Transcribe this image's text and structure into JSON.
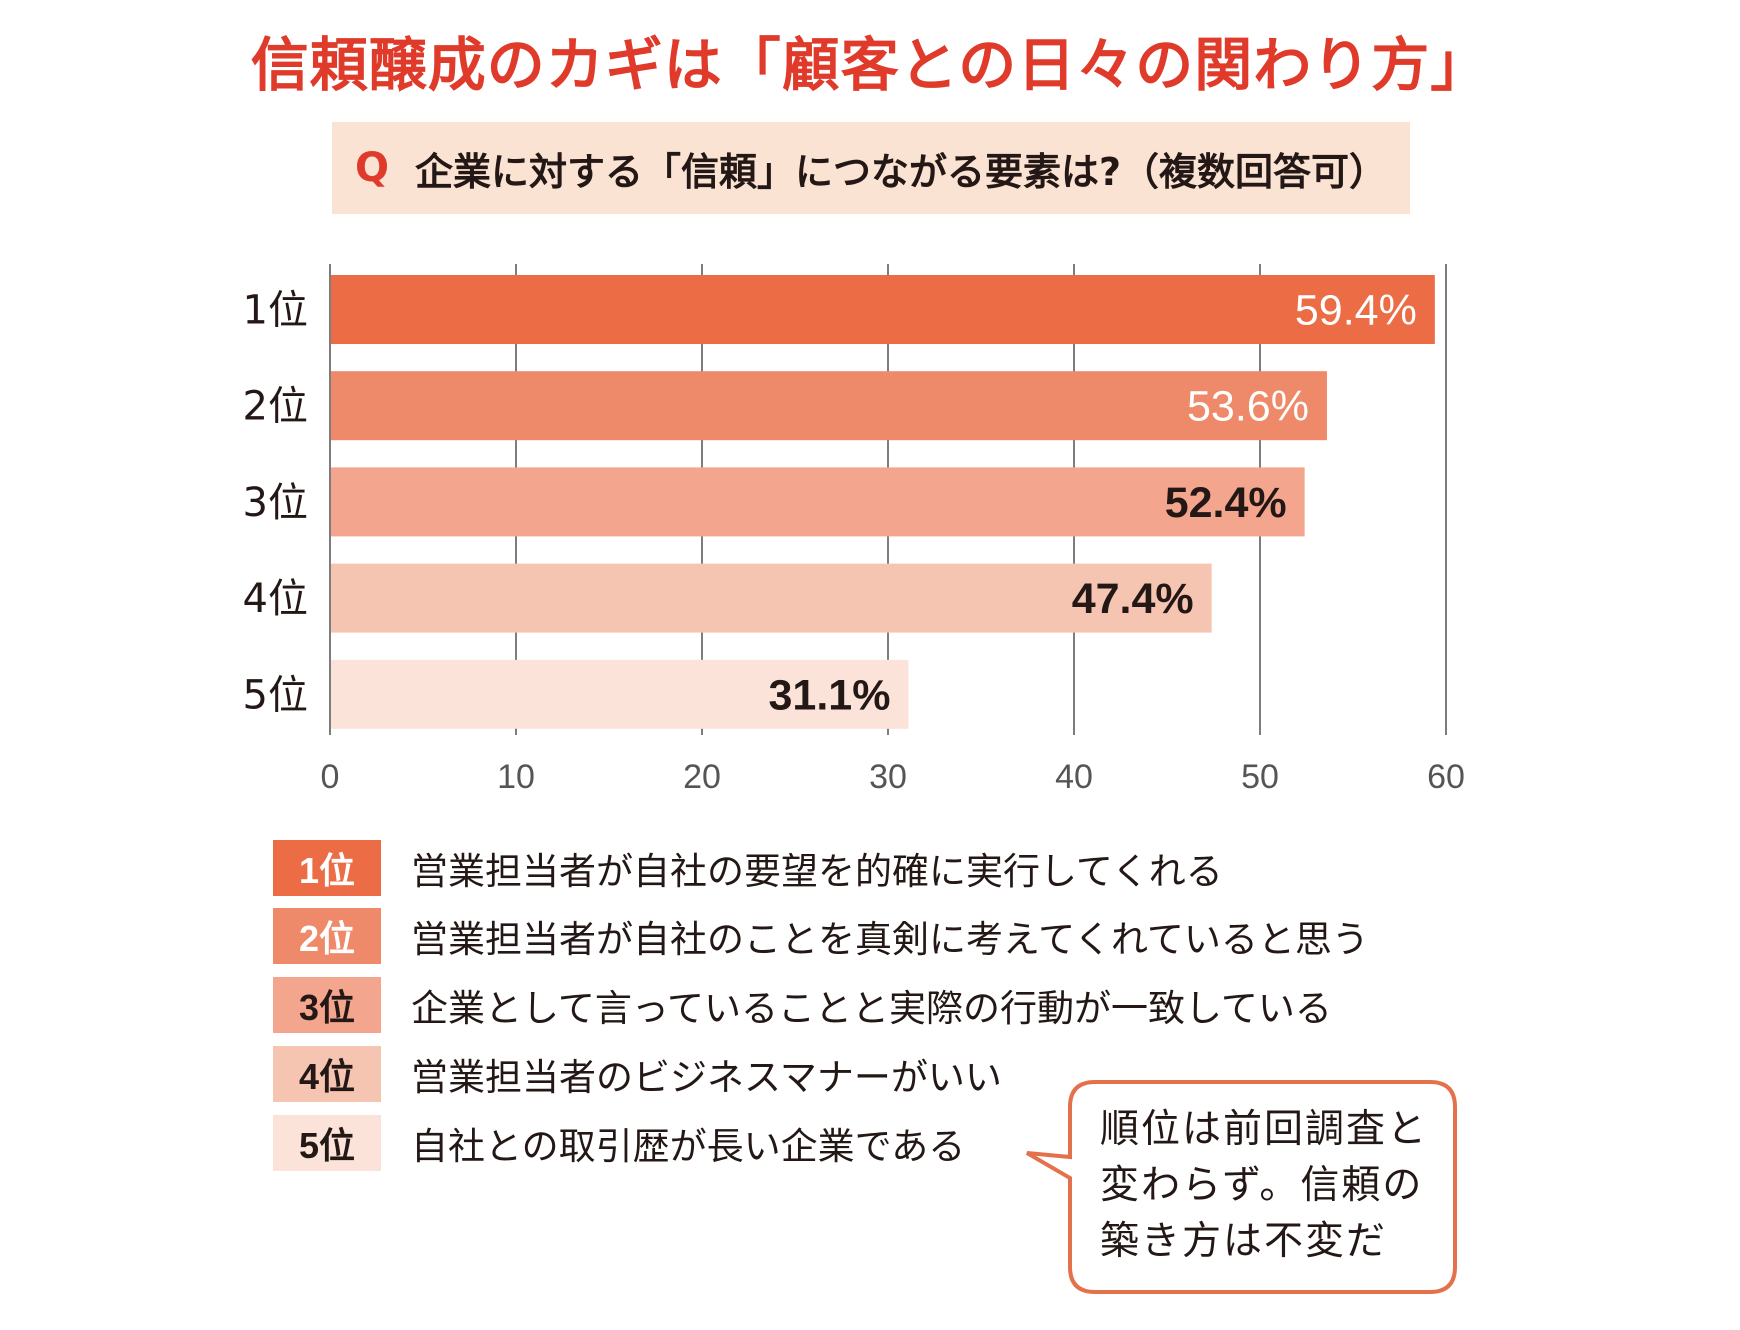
{
  "title": "信頼醸成のカギは「顧客との日々の関わり方」",
  "question": {
    "mark": "Q",
    "text": "企業に対する「信頼」につながる要素は?（複数回答可）"
  },
  "colors": {
    "title": "#e03a2b",
    "question_bg": "#fbe3d4",
    "rank_colors": [
      "#ec6c45",
      "#ee8a6a",
      "#f3a68d",
      "#f6c5b1",
      "#fbe3d9"
    ],
    "rank_label_colors": [
      "#ffffff",
      "#ffffff",
      "#231815",
      "#231815",
      "#231815"
    ],
    "grid": "#7d7d7d",
    "callout_border": "#e5714c"
  },
  "chart_data": {
    "type": "bar",
    "orientation": "horizontal",
    "title": "企業に対する「信頼」につながる要素は?（複数回答可）",
    "categories": [
      "1位",
      "2位",
      "3位",
      "4位",
      "5位"
    ],
    "values": [
      59.4,
      53.6,
      52.4,
      47.4,
      31.1
    ],
    "data_labels": [
      "59.4%",
      "53.6%",
      "52.4%",
      "47.4%",
      "31.1%"
    ],
    "xlim": [
      0,
      60
    ],
    "xticks": [
      0,
      10,
      20,
      30,
      40,
      50,
      60
    ],
    "xtick_labels": [
      "0",
      "10",
      "20",
      "30",
      "40",
      "50",
      "60"
    ],
    "xlabel": "",
    "ylabel": "",
    "grid": true,
    "unit": "%"
  },
  "legend": [
    {
      "rank": "1位",
      "text": "営業担当者が自社の要望を的確に実行してくれる"
    },
    {
      "rank": "2位",
      "text": "営業担当者が自社のことを真剣に考えてくれていると思う"
    },
    {
      "rank": "3位",
      "text": "企業として言っていることと実際の行動が一致している"
    },
    {
      "rank": "4位",
      "text": "営業担当者のビジネスマナーがいい"
    },
    {
      "rank": "5位",
      "text": "自社との取引歴が長い企業である"
    }
  ],
  "callout": {
    "lines": [
      "順位は前回調査と",
      "変わらず。信頼の",
      "築き方は不変だ"
    ]
  }
}
